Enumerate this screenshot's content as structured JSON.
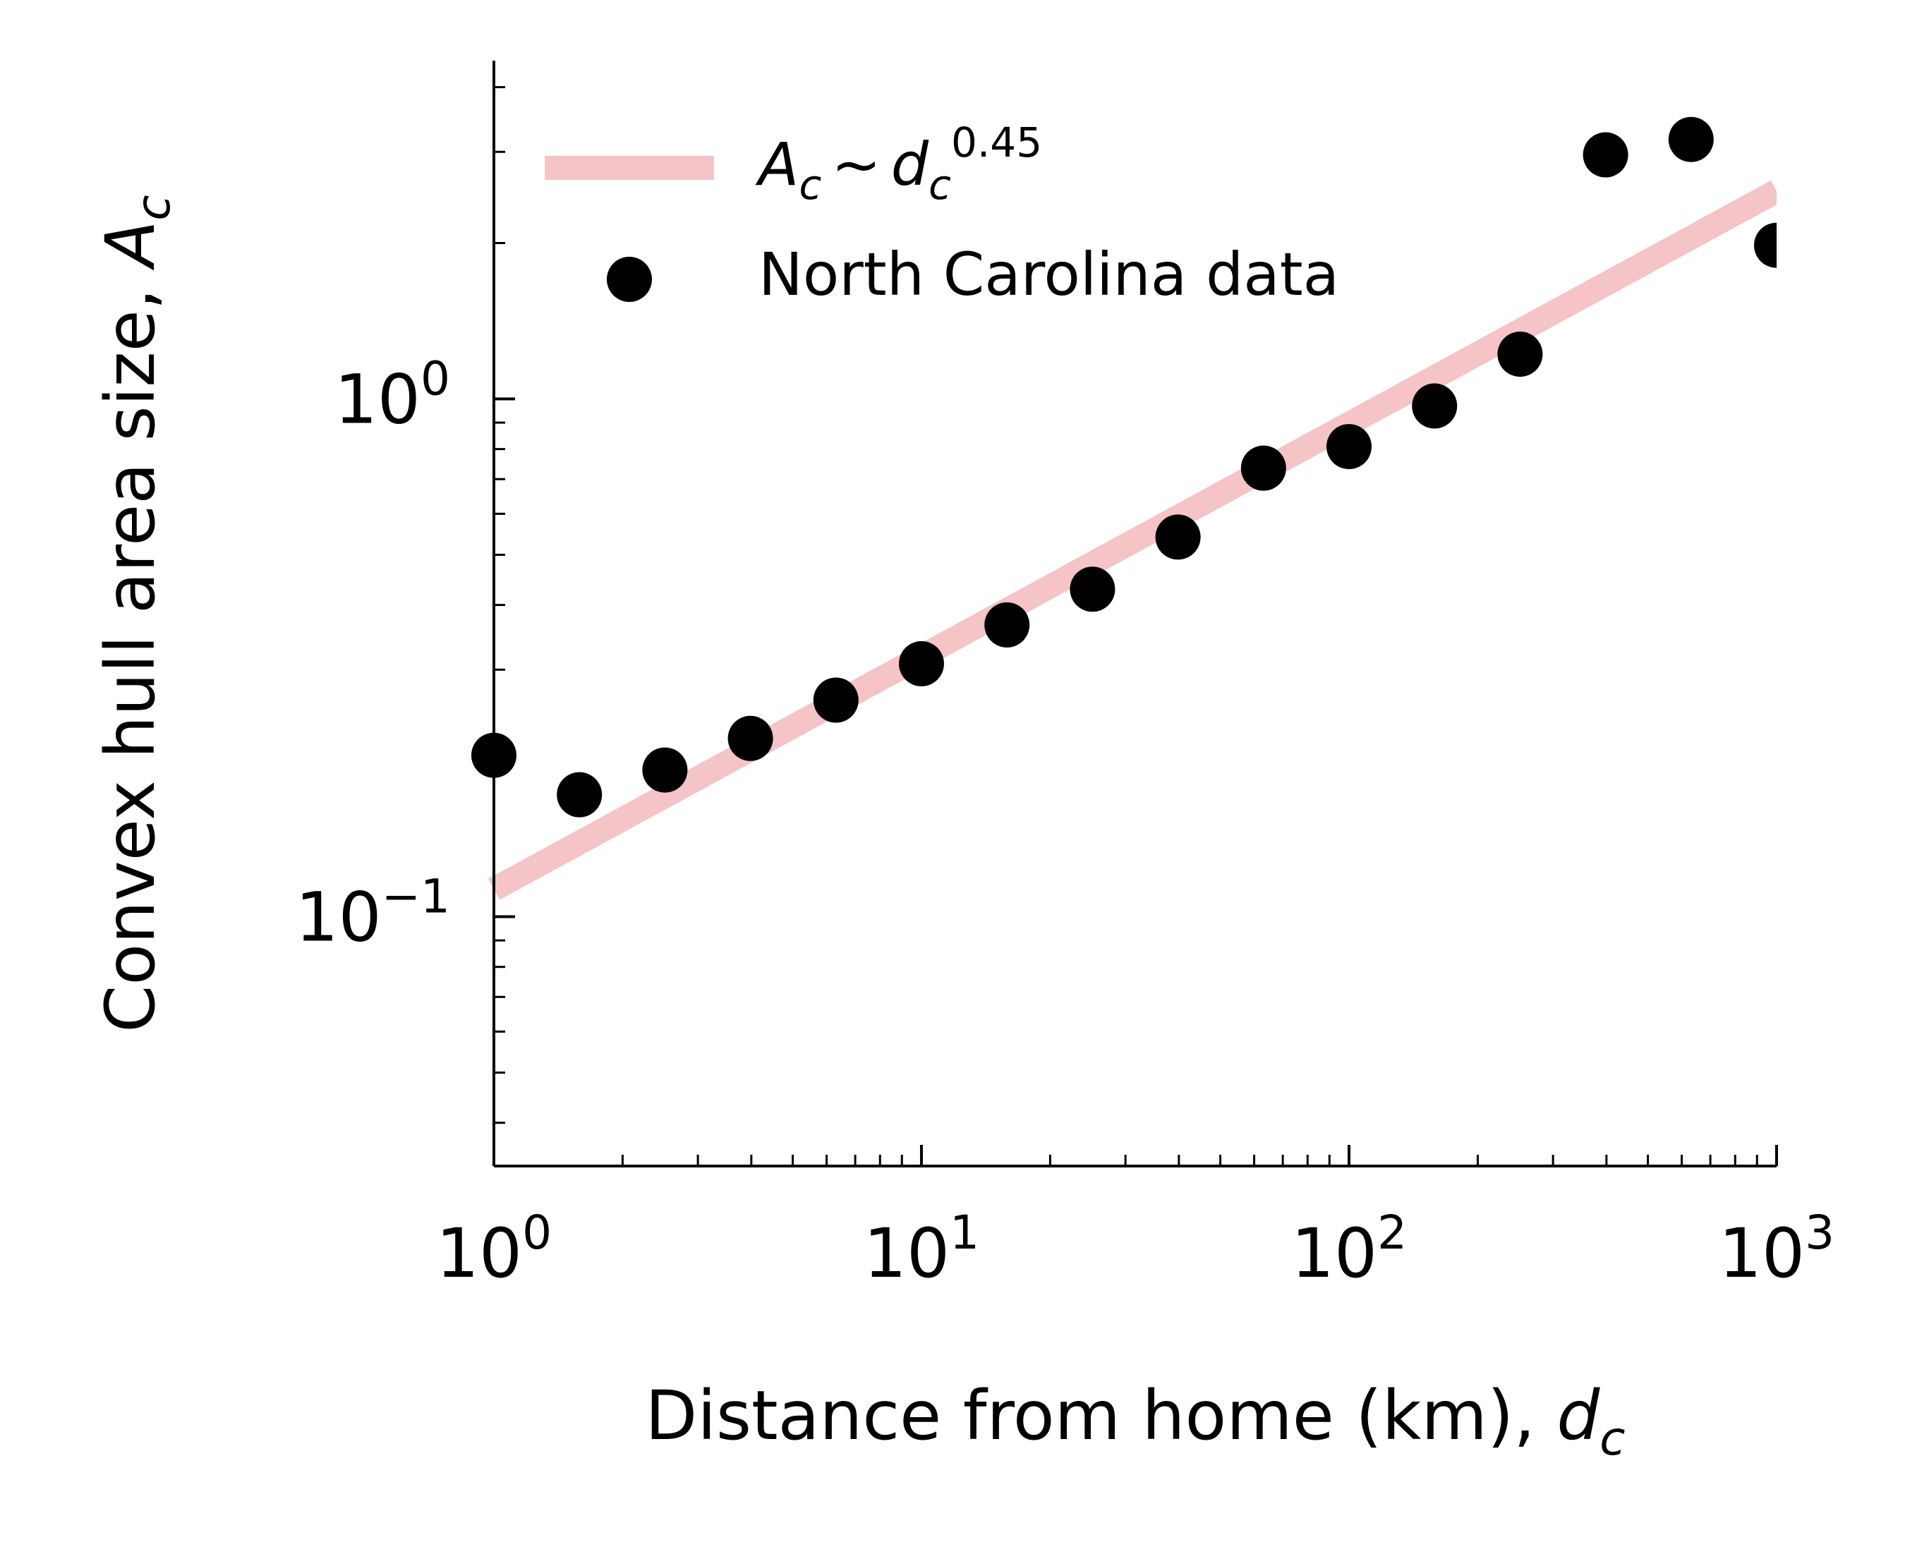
{
  "chart_data": {
    "type": "scatter",
    "x_scale": "log",
    "y_scale": "log",
    "xlim": [
      1,
      1000
    ],
    "ylim": [
      0.033,
      4.5
    ],
    "x_ticks": [
      {
        "value": 1,
        "base": "10",
        "exp": "0"
      },
      {
        "value": 10,
        "base": "10",
        "exp": "1"
      },
      {
        "value": 100,
        "base": "10",
        "exp": "2"
      },
      {
        "value": 1000,
        "base": "10",
        "exp": "3"
      }
    ],
    "y_ticks": [
      {
        "value": 0.1,
        "base": "10",
        "exp": "−1"
      },
      {
        "value": 1,
        "base": "10",
        "exp": "0"
      }
    ],
    "xlabel": {
      "text": "Distance from home (km), ",
      "var": "d",
      "sub": "c"
    },
    "ylabel": {
      "text": "Convex hull area size, ",
      "var": "A",
      "sub": "c"
    },
    "grid": false,
    "legend_placement": "top-left",
    "series": [
      {
        "kind": "line",
        "legend": {
          "var_a": "A",
          "sub_a": "c",
          "op": "~",
          "var_b": "d",
          "sub_b": "c",
          "exp": "0.45"
        },
        "color": "#f5c4c6",
        "x": [
          1,
          1000
        ],
        "y": [
          0.113,
          2.52
        ]
      },
      {
        "kind": "scatter",
        "name": "North Carolina data",
        "color": "#000000",
        "x": [
          1,
          1.585,
          2.512,
          3.981,
          6.31,
          10,
          15.85,
          25.12,
          39.81,
          63.1,
          100,
          158.5,
          251.2,
          398.1,
          631,
          1000
        ],
        "y": [
          0.205,
          0.172,
          0.192,
          0.221,
          0.262,
          0.308,
          0.366,
          0.429,
          0.541,
          0.735,
          0.809,
          0.969,
          1.22,
          2.96,
          3.17,
          1.98
        ]
      }
    ]
  }
}
